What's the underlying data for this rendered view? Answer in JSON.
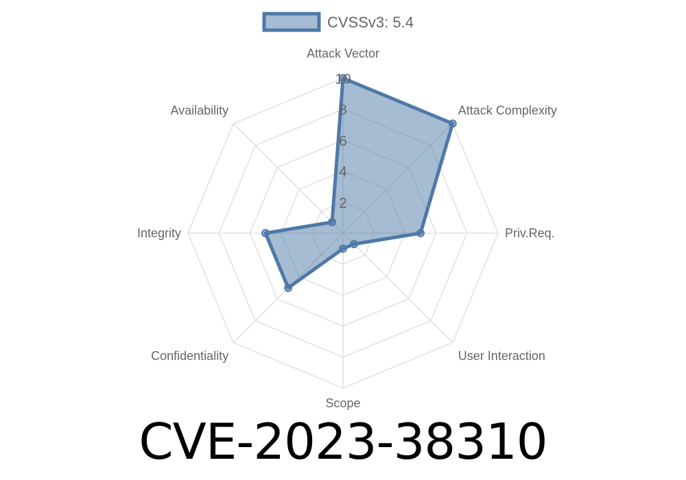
{
  "chart_data": {
    "type": "radar",
    "title": "CVE-2023-38310",
    "categories": [
      "Attack Vector",
      "Attack Complexity",
      "Priv.Req.",
      "User Interaction",
      "Scope",
      "Confidentiality",
      "Integrity",
      "Availability"
    ],
    "series": [
      {
        "name": "CVSSv3: 5.4",
        "values": [
          10,
          10,
          5,
          1,
          1,
          5,
          5,
          1
        ],
        "color": "#4e79a7"
      }
    ],
    "rlim": [
      0,
      10
    ],
    "ticks": [
      "2",
      "4",
      "6",
      "8",
      "10"
    ],
    "grid": true,
    "legend": "top"
  }
}
